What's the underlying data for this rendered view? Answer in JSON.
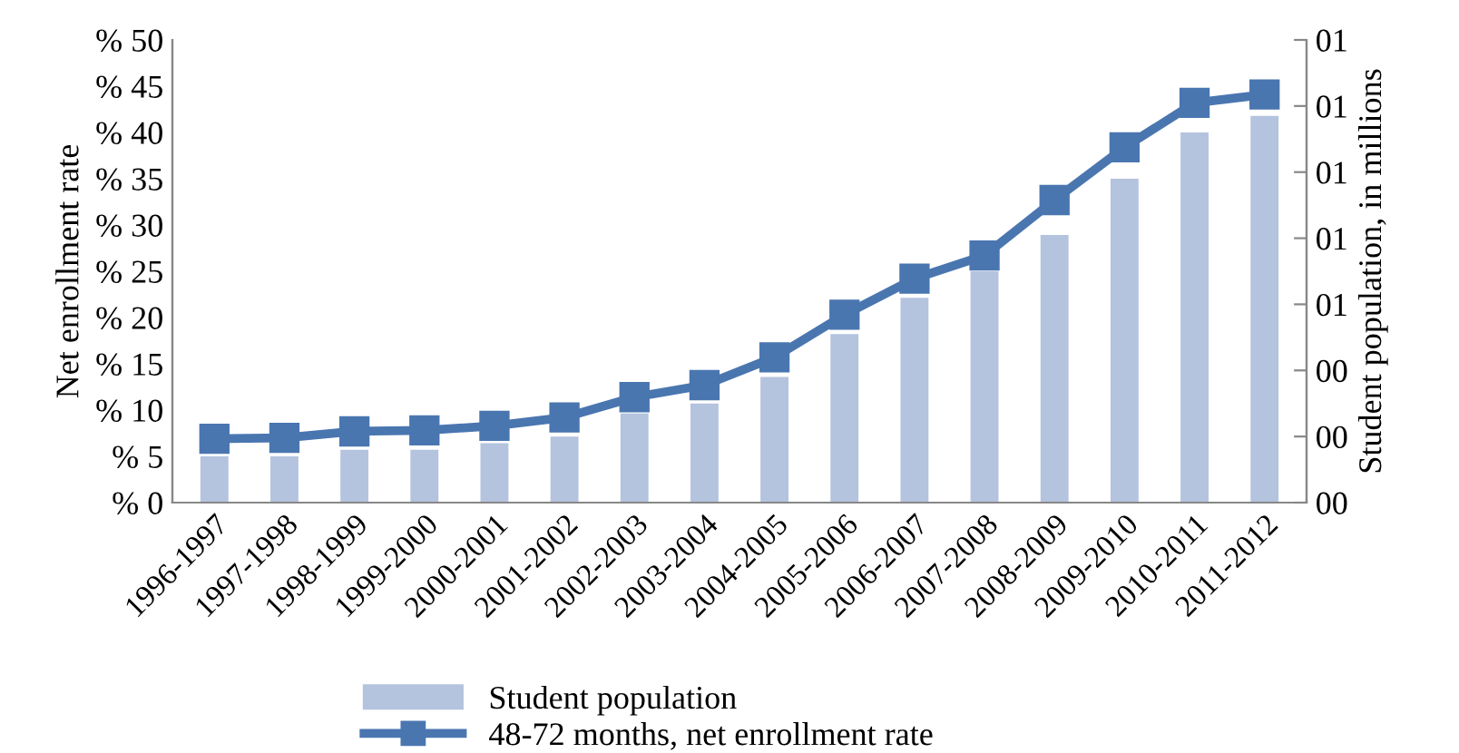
{
  "chart_data": {
    "type": "bar",
    "ylabel": "Net enrollment rate",
    "y2label": "Student population, in millions",
    "categories": [
      "1996-1997",
      "1997-1998",
      "1998-1999",
      "1999-2000",
      "2000-2001",
      "2001-2002",
      "2002-2003",
      "2003-2004",
      "2004-2005",
      "2005-2006",
      "2006-2007",
      "2007-2008",
      "2008-2009",
      "2009-2010",
      "2010-2011",
      "2011-2012"
    ],
    "series": [
      {
        "name": "Student population",
        "axis": "y2",
        "color": "#b4c3de",
        "values": [
          0.14,
          0.14,
          0.16,
          0.16,
          0.18,
          0.2,
          0.27,
          0.3,
          0.38,
          0.51,
          0.62,
          0.7,
          0.81,
          0.98,
          1.12,
          1.17
        ]
      },
      {
        "name": "48-72 months, net enrollment rate",
        "type": "line",
        "color": "#4a76b0",
        "marker": "square",
        "values": [
          6.9,
          7.0,
          7.7,
          7.8,
          8.3,
          9.2,
          11.4,
          12.7,
          15.7,
          20.3,
          24.2,
          26.7,
          32.7,
          38.4,
          43.2,
          44.1
        ]
      }
    ],
    "ylim": [
      0,
      50
    ],
    "yticks": [
      {
        "value": 0,
        "label": "% 0"
      },
      {
        "value": 5,
        "label": "% 5"
      },
      {
        "value": 10,
        "label": "% 10"
      },
      {
        "value": 15,
        "label": "% 15"
      },
      {
        "value": 20,
        "label": "% 20"
      },
      {
        "value": 25,
        "label": "% 25"
      },
      {
        "value": 30,
        "label": "% 30"
      },
      {
        "value": 35,
        "label": "% 35"
      },
      {
        "value": 40,
        "label": "% 40"
      },
      {
        "value": 45,
        "label": "% 45"
      },
      {
        "value": 50,
        "label": "% 50"
      }
    ],
    "y2lim": [
      0,
      1.4
    ],
    "y2ticks": [
      {
        "value": 0,
        "label": "00"
      },
      {
        "value": 0.2,
        "label": "00"
      },
      {
        "value": 0.4,
        "label": "00"
      },
      {
        "value": 0.6,
        "label": "01"
      },
      {
        "value": 0.8,
        "label": "01"
      },
      {
        "value": 1.0,
        "label": "01"
      },
      {
        "value": 1.2,
        "label": "01"
      },
      {
        "value": 1.4,
        "label": "01"
      }
    ],
    "grid": false,
    "legend": "bottom"
  }
}
